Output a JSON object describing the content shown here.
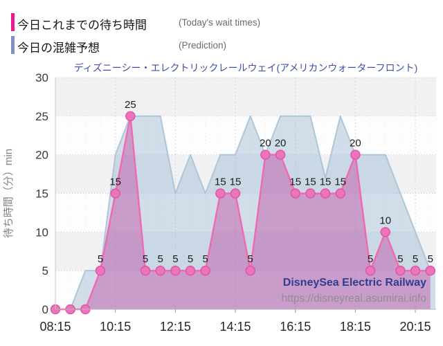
{
  "legend": {
    "items": [
      {
        "label": "今日これまでの待ち時間",
        "sublabel": "(Today's wait times)",
        "color": "#f0188e"
      },
      {
        "label": "今日の混雑予想",
        "sublabel": "(Prediction)",
        "color": "#8090c2"
      }
    ]
  },
  "watermark": {
    "line1": "DisneySea Electric Railway",
    "line2": "https://disneyreal.asumirai.info"
  },
  "chart_data": {
    "type": "area",
    "title": "ディズニーシー・エレクトリックレールウェイ(アメリカンウォーターフロント)",
    "ylabel": "待ち時間（分）min",
    "ylim": [
      0,
      30
    ],
    "ytick_values": [
      0,
      5,
      10,
      15,
      20,
      25,
      30
    ],
    "x_tick_labels": [
      "08:15",
      "10:15",
      "12:15",
      "14:15",
      "16:15",
      "18:15",
      "20:15"
    ],
    "x": [
      "08:15",
      "08:45",
      "09:15",
      "09:45",
      "10:15",
      "10:45",
      "11:15",
      "11:45",
      "12:15",
      "12:45",
      "13:15",
      "13:45",
      "14:15",
      "14:45",
      "15:15",
      "15:45",
      "16:15",
      "16:45",
      "17:15",
      "17:45",
      "18:15",
      "18:45",
      "19:15",
      "19:45",
      "20:15",
      "20:45"
    ],
    "series": [
      {
        "name": "今日これまでの待ち時間",
        "type": "line+markers+labels",
        "color": "#ee6bb3",
        "marker_color": "#ec74ba",
        "marker_edge": "#df55a5",
        "fill": "rgba(190,75,165,0.45)",
        "values": [
          0,
          0,
          0,
          5,
          15,
          25,
          5,
          5,
          5,
          5,
          5,
          15,
          15,
          5,
          20,
          20,
          15,
          15,
          15,
          15,
          20,
          5,
          10,
          5,
          5,
          5
        ]
      },
      {
        "name": "今日の混雑予想",
        "type": "line",
        "color": "#adc6d8",
        "fill": "rgba(155,185,210,0.45)",
        "values": [
          0,
          0,
          5,
          5,
          20,
          25,
          25,
          25,
          15,
          20,
          15,
          20,
          20,
          25,
          20,
          25,
          25,
          25,
          17,
          25,
          20,
          20,
          20,
          15,
          10,
          5
        ]
      }
    ],
    "grid": true,
    "legend_position": "top-left"
  }
}
